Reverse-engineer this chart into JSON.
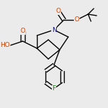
{
  "bg_color": "#ebebeb",
  "bond_color": "#000000",
  "atom_colors": {
    "O": "#cc4400",
    "N": "#0000cc",
    "F": "#008800",
    "C": "#000000"
  },
  "figsize": [
    1.52,
    1.52
  ],
  "dpi": 100,
  "lw": 1.0
}
